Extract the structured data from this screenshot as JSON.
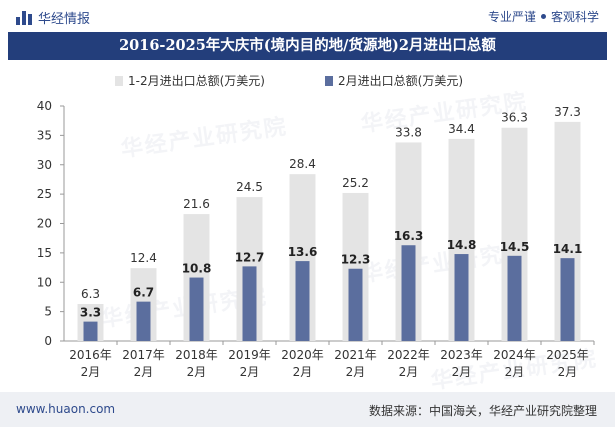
{
  "header": {
    "logo_text": "华经情报",
    "slogan_left": "专业严谨",
    "slogan_right": "客观科学"
  },
  "title": "2016-2025年大庆市(境内目的地/货源地)2月进出口总额",
  "footer": {
    "url": "www.huaon.com",
    "source": "数据来源：中国海关，华经产业研究院整理"
  },
  "watermark_text": "华经产业研究院",
  "colors": {
    "title_bg": "#233e7b",
    "bar_total": "#e4e4e4",
    "bar_feb": "#5b6e9e",
    "axis": "#999999"
  },
  "chart_data": {
    "type": "bar",
    "categories": [
      "2016年\n2月",
      "2017年\n2月",
      "2018年\n2月",
      "2019年\n2月",
      "2020年\n2月",
      "2021年\n2月",
      "2022年\n2月",
      "2023年\n2月",
      "2024年\n2月",
      "2025年\n2月"
    ],
    "series": [
      {
        "name": "1-2月进出口总额(万美元)",
        "values": [
          6.3,
          12.4,
          21.6,
          24.5,
          28.4,
          25.2,
          33.8,
          34.4,
          36.3,
          37.3
        ]
      },
      {
        "name": "2月进出口总额(万美元)",
        "values": [
          3.3,
          6.7,
          10.8,
          12.7,
          13.6,
          12.3,
          16.3,
          14.8,
          14.5,
          14.1
        ]
      }
    ],
    "ylim": [
      0,
      40
    ],
    "yticks": [
      0,
      5,
      10,
      15,
      20,
      25,
      30,
      35,
      40
    ],
    "grid": false,
    "legend": "top"
  }
}
